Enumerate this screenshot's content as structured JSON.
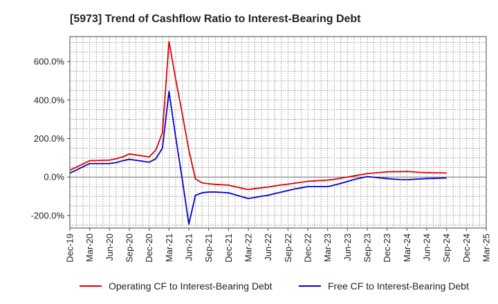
{
  "chart_data": {
    "type": "line",
    "title": "[5973]  Trend of Cashflow Ratio to Interest-Bearing Debt",
    "xlabel": "",
    "ylabel": "",
    "ylim": [
      -265,
      730
    ],
    "yticks": [
      600,
      400,
      200,
      0,
      -200
    ],
    "ytick_labels": [
      "600.0%",
      "400.0%",
      "200.0%",
      "0.0%",
      "-200.0%"
    ],
    "x_range": [
      "Dec-19",
      "Mar-25"
    ],
    "xtick_labels": [
      "Dec-19",
      "Mar-20",
      "Jun-20",
      "Sep-20",
      "Dec-20",
      "Mar-21",
      "Jun-21",
      "Sep-21",
      "Dec-21",
      "Mar-22",
      "Jun-22",
      "Sep-22",
      "Dec-22",
      "Mar-23",
      "Jun-23",
      "Sep-23",
      "Dec-23",
      "Mar-24",
      "Jun-24",
      "Sep-24",
      "Dec-24",
      "Mar-25"
    ],
    "grid": true,
    "legend_position": "bottom",
    "x": [
      "Dec-19",
      "Mar-20",
      "Jun-20",
      "Jul-20",
      "Aug-20",
      "Sep-20",
      "Oct-20",
      "Nov-20",
      "Dec-20",
      "Jan-21",
      "Feb-21",
      "Mar-21",
      "Apr-21",
      "May-21",
      "Jun-21",
      "Jul-21",
      "Aug-21",
      "Sep-21",
      "Oct-21",
      "Nov-21",
      "Dec-21",
      "Jan-22",
      "Feb-22",
      "Mar-22",
      "Apr-22",
      "May-22",
      "Jun-22",
      "Jul-22",
      "Aug-22",
      "Sep-22",
      "Oct-22",
      "Nov-22",
      "Dec-22",
      "Jan-23",
      "Feb-23",
      "Mar-23",
      "Apr-23",
      "May-23",
      "Jun-23",
      "Jul-23",
      "Aug-23",
      "Sep-23",
      "Oct-23",
      "Nov-23",
      "Dec-23",
      "Jan-24",
      "Feb-24",
      "Mar-24",
      "Apr-24",
      "May-24",
      "Jun-24",
      "Jul-24",
      "Aug-24",
      "Sep-24"
    ],
    "series": [
      {
        "name": "Operating CF to Interest-Bearing Debt",
        "color": "#dd0000",
        "values": [
          35,
          85,
          88,
          95,
          105,
          120,
          115,
          110,
          105,
          140,
          230,
          705,
          510,
          330,
          140,
          -10,
          -30,
          -35,
          -38,
          -40,
          -42,
          -50,
          -58,
          -65,
          -60,
          -56,
          -52,
          -46,
          -41,
          -37,
          -32,
          -27,
          -22,
          -20,
          -18,
          -16,
          -12,
          -6,
          0,
          6,
          12,
          18,
          21,
          24,
          27,
          28,
          28,
          29,
          27,
          24,
          23,
          22,
          22,
          21
        ]
      },
      {
        "name": "Free CF to Interest-Bearing Debt",
        "color": "#0000cc",
        "values": [
          20,
          70,
          70,
          75,
          85,
          92,
          87,
          82,
          77,
          95,
          150,
          445,
          210,
          -10,
          -245,
          -95,
          -82,
          -78,
          -78,
          -80,
          -82,
          -92,
          -102,
          -112,
          -106,
          -100,
          -95,
          -86,
          -78,
          -70,
          -62,
          -56,
          -50,
          -50,
          -50,
          -50,
          -42,
          -33,
          -23,
          -13,
          -5,
          2,
          -1,
          -5,
          -8,
          -11,
          -13,
          -14,
          -12,
          -10,
          -8,
          -7,
          -6,
          -5
        ]
      }
    ]
  }
}
